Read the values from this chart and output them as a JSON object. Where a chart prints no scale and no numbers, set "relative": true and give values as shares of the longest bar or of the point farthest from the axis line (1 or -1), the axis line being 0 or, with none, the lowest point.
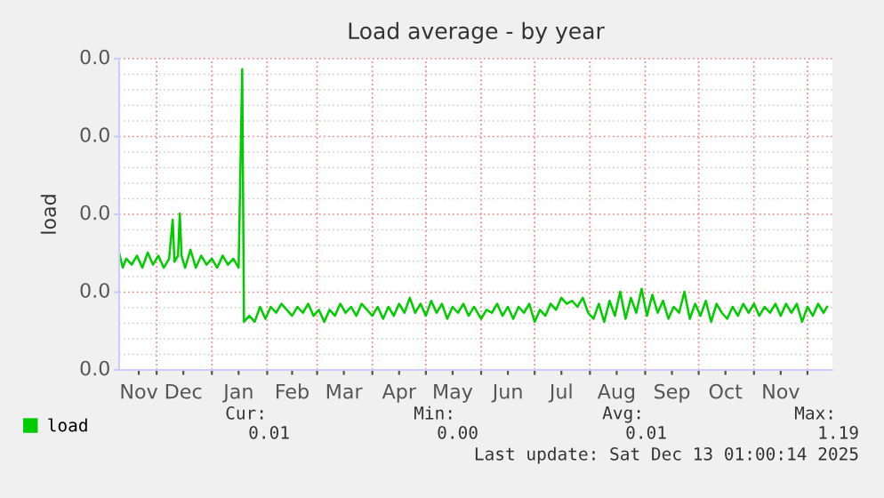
{
  "chart_data": {
    "type": "line",
    "title": "Load average - by year",
    "ylabel": "load",
    "x": [
      "2024-11-10",
      "2024-11-12",
      "2024-11-14",
      "2024-11-17",
      "2024-11-20",
      "2024-11-23",
      "2024-11-26",
      "2024-11-29",
      "2024-12-02",
      "2024-12-05",
      "2024-12-08",
      "2024-12-10",
      "2024-12-11",
      "2024-12-13",
      "2024-12-14",
      "2024-12-15",
      "2024-12-17",
      "2024-12-20",
      "2024-12-23",
      "2024-12-26",
      "2024-12-29",
      "2025-01-01",
      "2025-01-04",
      "2025-01-07",
      "2025-01-10",
      "2025-01-13",
      "2025-01-16",
      "2025-01-18",
      "2025-01-19",
      "2025-01-22",
      "2025-01-25",
      "2025-01-28",
      "2025-01-31",
      "2025-02-03",
      "2025-02-06",
      "2025-02-09",
      "2025-02-12",
      "2025-02-15",
      "2025-02-18",
      "2025-02-21",
      "2025-02-24",
      "2025-02-27",
      "2025-03-02",
      "2025-03-05",
      "2025-03-08",
      "2025-03-11",
      "2025-03-14",
      "2025-03-17",
      "2025-03-20",
      "2025-03-23",
      "2025-03-26",
      "2025-03-29",
      "2025-04-01",
      "2025-04-04",
      "2025-04-07",
      "2025-04-10",
      "2025-04-13",
      "2025-04-16",
      "2025-04-19",
      "2025-04-22",
      "2025-04-25",
      "2025-04-28",
      "2025-05-01",
      "2025-05-04",
      "2025-05-07",
      "2025-05-10",
      "2025-05-13",
      "2025-05-16",
      "2025-05-19",
      "2025-05-22",
      "2025-05-25",
      "2025-05-28",
      "2025-06-01",
      "2025-06-04",
      "2025-06-07",
      "2025-06-10",
      "2025-06-13",
      "2025-06-16",
      "2025-06-19",
      "2025-06-22",
      "2025-06-25",
      "2025-06-28",
      "2025-07-01",
      "2025-07-04",
      "2025-07-07",
      "2025-07-10",
      "2025-07-13",
      "2025-07-16",
      "2025-07-19",
      "2025-07-22",
      "2025-07-25",
      "2025-07-28",
      "2025-07-31",
      "2025-08-03",
      "2025-08-06",
      "2025-08-09",
      "2025-08-12",
      "2025-08-15",
      "2025-08-18",
      "2025-08-21",
      "2025-08-24",
      "2025-08-27",
      "2025-08-30",
      "2025-09-02",
      "2025-09-05",
      "2025-09-08",
      "2025-09-11",
      "2025-09-14",
      "2025-09-17",
      "2025-09-20",
      "2025-09-23",
      "2025-09-26",
      "2025-09-29",
      "2025-10-02",
      "2025-10-05",
      "2025-10-08",
      "2025-10-11",
      "2025-10-14",
      "2025-10-17",
      "2025-10-20",
      "2025-10-23",
      "2025-10-26",
      "2025-10-29",
      "2025-11-01",
      "2025-11-04",
      "2025-11-07",
      "2025-11-10",
      "2025-11-13",
      "2025-11-16",
      "2025-11-19",
      "2025-11-22",
      "2025-11-25",
      "2025-11-28",
      "2025-12-01",
      "2025-12-04",
      "2025-12-07",
      "2025-12-10",
      "2025-12-12"
    ],
    "series": [
      {
        "name": "load",
        "color": "#00cc00",
        "values": [
          0.39,
          0.34,
          0.37,
          0.35,
          0.38,
          0.34,
          0.39,
          0.35,
          0.38,
          0.34,
          0.37,
          0.5,
          0.36,
          0.38,
          0.52,
          0.38,
          0.34,
          0.4,
          0.34,
          0.38,
          0.35,
          0.37,
          0.34,
          0.38,
          0.35,
          0.37,
          0.34,
          1,
          0.16,
          0.18,
          0.16,
          0.21,
          0.17,
          0.21,
          0.19,
          0.22,
          0.2,
          0.18,
          0.21,
          0.19,
          0.22,
          0.18,
          0.2,
          0.16,
          0.2,
          0.18,
          0.22,
          0.19,
          0.21,
          0.18,
          0.22,
          0.2,
          0.18,
          0.21,
          0.17,
          0.21,
          0.18,
          0.22,
          0.19,
          0.24,
          0.19,
          0.22,
          0.18,
          0.23,
          0.19,
          0.22,
          0.17,
          0.21,
          0.19,
          0.22,
          0.18,
          0.21,
          0.17,
          0.2,
          0.19,
          0.22,
          0.18,
          0.21,
          0.17,
          0.21,
          0.19,
          0.22,
          0.16,
          0.2,
          0.18,
          0.22,
          0.2,
          0.24,
          0.22,
          0.23,
          0.21,
          0.24,
          0.19,
          0.17,
          0.22,
          0.16,
          0.23,
          0.18,
          0.26,
          0.17,
          0.24,
          0.19,
          0.27,
          0.18,
          0.25,
          0.19,
          0.23,
          0.17,
          0.21,
          0.19,
          0.26,
          0.17,
          0.22,
          0.18,
          0.23,
          0.16,
          0.22,
          0.19,
          0.17,
          0.21,
          0.18,
          0.22,
          0.19,
          0.22,
          0.18,
          0.21,
          0.19,
          0.22,
          0.18,
          0.22,
          0.19,
          0.22,
          0.16,
          0.21,
          0.18,
          0.22,
          0.19,
          0.21
        ]
      }
    ],
    "relative": true,
    "xlim": [
      "2024-11-10",
      "2025-12-15"
    ],
    "xticks": [
      {
        "value": "2024-11-21",
        "label": "Nov"
      },
      {
        "value": "2024-12-01",
        "label": null
      },
      {
        "value": "2024-12-16",
        "label": "Dec"
      },
      {
        "value": "2025-01-01",
        "label": null
      },
      {
        "value": "2025-01-16",
        "label": "Jan"
      },
      {
        "value": "2025-02-01",
        "label": null
      },
      {
        "value": "2025-02-15",
        "label": "Feb"
      },
      {
        "value": "2025-03-01",
        "label": null
      },
      {
        "value": "2025-03-16",
        "label": "Mar"
      },
      {
        "value": "2025-04-01",
        "label": null
      },
      {
        "value": "2025-04-16",
        "label": "Apr"
      },
      {
        "value": "2025-05-01",
        "label": null
      },
      {
        "value": "2025-05-16",
        "label": "May"
      },
      {
        "value": "2025-06-01",
        "label": null
      },
      {
        "value": "2025-06-16",
        "label": "Jun"
      },
      {
        "value": "2025-07-01",
        "label": null
      },
      {
        "value": "2025-07-16",
        "label": "Jul"
      },
      {
        "value": "2025-08-01",
        "label": null
      },
      {
        "value": "2025-08-16",
        "label": "Aug"
      },
      {
        "value": "2025-09-01",
        "label": null
      },
      {
        "value": "2025-09-16",
        "label": "Sep"
      },
      {
        "value": "2025-10-01",
        "label": null
      },
      {
        "value": "2025-10-16",
        "label": "Oct"
      },
      {
        "value": "2025-11-01",
        "label": null
      },
      {
        "value": "2025-11-16",
        "label": "Nov"
      },
      {
        "value": "2025-12-01",
        "label": null
      }
    ],
    "grid": true,
    "legend": "bottom left",
    "marker": "none",
    "line_style": "solid",
    "annotations": [
      "0.0",
      "0.0",
      "0.0",
      "0.0",
      "0.0",
      "Cur:",
      "Min:",
      "Avg:",
      "Max:",
      "0.01",
      "0.00",
      "0.01",
      "1.19",
      "Last update: Sat Dec 13 01:00:14 2025"
    ]
  }
}
